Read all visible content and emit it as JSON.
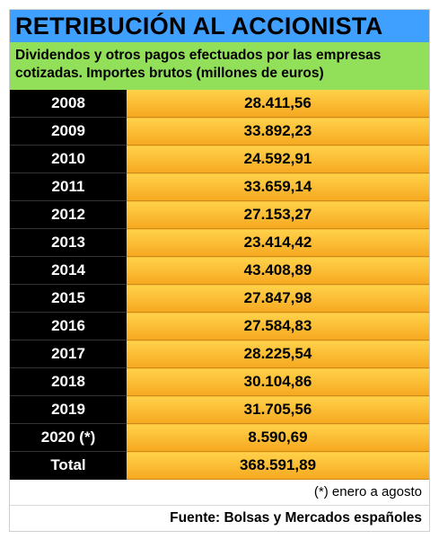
{
  "title": "RETRIBUCIÓN AL ACCIONISTA",
  "subtitle": "Dividendos y otros pagos efectuados por las empresas cotizadas. Importes brutos (millones de euros)",
  "rows": [
    {
      "year": "2008",
      "value": "28.411,56"
    },
    {
      "year": "2009",
      "value": "33.892,23"
    },
    {
      "year": "2010",
      "value": "24.592,91"
    },
    {
      "year": "2011",
      "value": "33.659,14"
    },
    {
      "year": "2012",
      "value": "27.153,27"
    },
    {
      "year": "2013",
      "value": "23.414,42"
    },
    {
      "year": "2014",
      "value": "43.408,89"
    },
    {
      "year": "2015",
      "value": "27.847,98"
    },
    {
      "year": "2016",
      "value": "27.584,83"
    },
    {
      "year": "2017",
      "value": "28.225,54"
    },
    {
      "year": "2018",
      "value": "30.104,86"
    },
    {
      "year": "2019",
      "value": "31.705,56"
    },
    {
      "year": "2020 (*)",
      "value": "8.590,69"
    }
  ],
  "total": {
    "label": "Total",
    "value": "368.591,89"
  },
  "footnote": "(*) enero a agosto",
  "source": "Fuente: Bolsas y Mercados españoles",
  "colors": {
    "title_bg": "#3fa0ff",
    "subtitle_bg": "#92e05a",
    "year_bg": "#000000",
    "value_bg": "#f6b52e"
  }
}
